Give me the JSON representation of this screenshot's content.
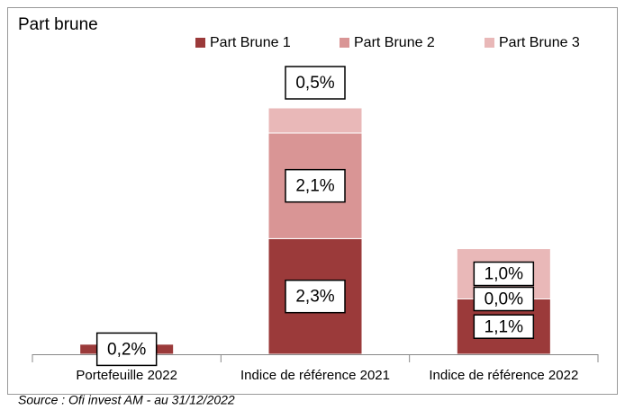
{
  "chart_data": {
    "type": "stacked_bar",
    "title": "Part brune",
    "categories": [
      "Portefeuille 2022",
      "Indice de référence 2021",
      "Indice de référence 2022"
    ],
    "series": [
      {
        "name": "Part Brune 1",
        "color": "#9b3a3a",
        "values": [
          0.2,
          2.3,
          1.1
        ],
        "value_labels": [
          "0,2%",
          "2,3%",
          "1,1%"
        ]
      },
      {
        "name": "Part Brune 2",
        "color": "#d99595",
        "values": [
          0,
          2.1,
          0.0
        ],
        "value_labels": [
          null,
          "2,1%",
          "0,0%"
        ]
      },
      {
        "name": "Part Brune 3",
        "color": "#e9b8b8",
        "values": [
          0,
          0.5,
          1.0
        ],
        "value_labels": [
          null,
          "0,5%",
          "1,0%"
        ]
      }
    ],
    "legend": "top",
    "note": "Source : Ofi invest AM - au 31/12/2022"
  }
}
